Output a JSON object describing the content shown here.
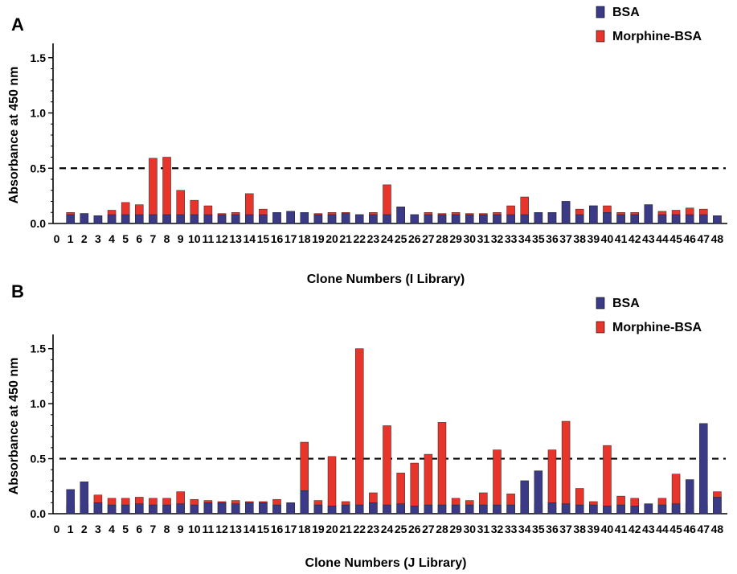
{
  "colors": {
    "bsa": "#3a3a86",
    "morphine": "#e8352c",
    "axis": "#000000"
  },
  "chart_data": [
    {
      "type": "bar",
      "panel": "A",
      "stacked": true,
      "xlabel": "Clone Numbers (I Library)",
      "ylabel": "Absorbance at 450 nm",
      "ylim": [
        0,
        1.6
      ],
      "yticks": [
        "0.0",
        "0.5",
        "1.0",
        "1.5"
      ],
      "reference_line": 0.5,
      "legend": [
        "BSA",
        "Morphine-BSA"
      ],
      "categories": [
        "0",
        "1",
        "2",
        "3",
        "4",
        "5",
        "6",
        "7",
        "8",
        "9",
        "10",
        "11",
        "12",
        "13",
        "14",
        "15",
        "16",
        "17",
        "18",
        "19",
        "20",
        "21",
        "22",
        "23",
        "24",
        "25",
        "26",
        "27",
        "28",
        "29",
        "30",
        "31",
        "32",
        "33",
        "34",
        "35",
        "36",
        "37",
        "38",
        "39",
        "40",
        "41",
        "42",
        "43",
        "44",
        "45",
        "46",
        "47",
        "48"
      ],
      "series": [
        {
          "name": "BSA",
          "values": [
            null,
            0.08,
            0.09,
            0.07,
            0.08,
            0.08,
            0.08,
            0.08,
            0.08,
            0.08,
            0.08,
            0.08,
            0.08,
            0.08,
            0.08,
            0.08,
            0.1,
            0.11,
            0.1,
            0.08,
            0.08,
            0.09,
            0.08,
            0.08,
            0.08,
            0.15,
            0.08,
            0.08,
            0.08,
            0.08,
            0.08,
            0.08,
            0.08,
            0.08,
            0.08,
            0.1,
            0.1,
            0.2,
            0.08,
            0.16,
            0.1,
            0.08,
            0.08,
            0.17,
            0.08,
            0.08,
            0.08,
            0.08,
            0.07
          ]
        },
        {
          "name": "Morphine-BSA",
          "values": [
            null,
            0.1,
            0.09,
            0.07,
            0.12,
            0.19,
            0.17,
            0.59,
            0.6,
            0.3,
            0.21,
            0.16,
            0.09,
            0.1,
            0.27,
            0.13,
            0.1,
            0.11,
            0.1,
            0.09,
            0.1,
            0.1,
            0.08,
            0.1,
            0.35,
            0.15,
            0.08,
            0.1,
            0.09,
            0.1,
            0.09,
            0.09,
            0.1,
            0.16,
            0.24,
            0.1,
            0.1,
            0.2,
            0.13,
            0.16,
            0.16,
            0.1,
            0.1,
            0.17,
            0.11,
            0.12,
            0.14,
            0.13,
            0.07
          ]
        }
      ]
    },
    {
      "type": "bar",
      "panel": "B",
      "stacked": true,
      "xlabel": "Clone Numbers (J Library)",
      "ylabel": "Absorbance at 450 nm",
      "ylim": [
        0,
        1.6
      ],
      "yticks": [
        "0.0",
        "0.5",
        "1.0",
        "1.5"
      ],
      "reference_line": 0.5,
      "legend": [
        "BSA",
        "Morphine-BSA"
      ],
      "categories": [
        "0",
        "1",
        "2",
        "3",
        "4",
        "5",
        "6",
        "7",
        "8",
        "9",
        "10",
        "11",
        "12",
        "13",
        "14",
        "15",
        "16",
        "17",
        "18",
        "19",
        "20",
        "21",
        "22",
        "23",
        "24",
        "25",
        "26",
        "27",
        "28",
        "29",
        "30",
        "31",
        "32",
        "33",
        "34",
        "35",
        "36",
        "37",
        "38",
        "39",
        "40",
        "41",
        "42",
        "43",
        "44",
        "45",
        "46",
        "47",
        "48"
      ],
      "series": [
        {
          "name": "BSA",
          "values": [
            null,
            0.22,
            0.29,
            0.1,
            0.08,
            0.08,
            0.09,
            0.08,
            0.08,
            0.09,
            0.08,
            0.1,
            0.1,
            0.09,
            0.1,
            0.1,
            0.08,
            0.1,
            0.21,
            0.08,
            0.07,
            0.08,
            0.08,
            0.1,
            0.08,
            0.09,
            0.07,
            0.08,
            0.08,
            0.08,
            0.08,
            0.08,
            0.08,
            0.08,
            0.3,
            0.39,
            0.1,
            0.09,
            0.08,
            0.08,
            0.07,
            0.08,
            0.07,
            0.09,
            0.08,
            0.09,
            0.31,
            0.82,
            0.15
          ]
        },
        {
          "name": "Morphine-BSA",
          "values": [
            null,
            0.08,
            0.09,
            0.17,
            0.14,
            0.14,
            0.15,
            0.14,
            0.14,
            0.2,
            0.13,
            0.12,
            0.11,
            0.12,
            0.11,
            0.11,
            0.13,
            0.1,
            0.65,
            0.12,
            0.52,
            0.11,
            1.5,
            0.19,
            0.8,
            0.37,
            0.46,
            0.54,
            0.83,
            0.14,
            0.12,
            0.19,
            0.58,
            0.18,
            0.08,
            0.09,
            0.58,
            0.84,
            0.23,
            0.11,
            0.62,
            0.16,
            0.14,
            0.09,
            0.14,
            0.36,
            0.09,
            0.08,
            0.2
          ]
        }
      ]
    }
  ]
}
